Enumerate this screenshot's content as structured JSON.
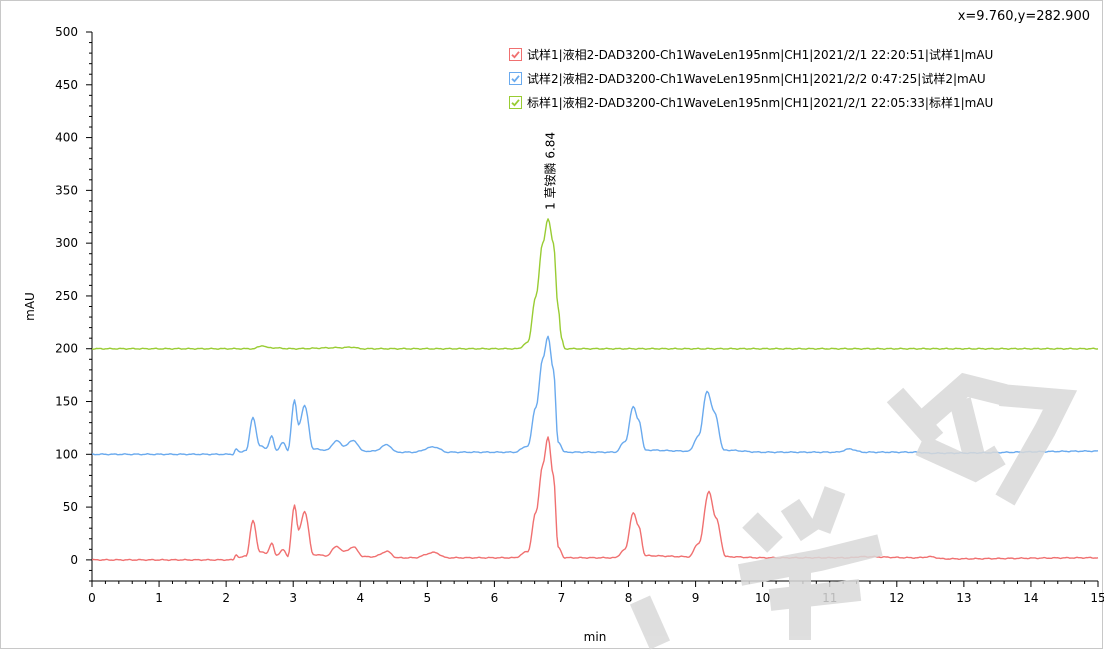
{
  "coord_readout": "x=9.760,y=282.900",
  "colors": {
    "red": "#f07070",
    "blue": "#6aaaee",
    "green": "#99cc33",
    "axis": "#000000"
  },
  "legend": [
    {
      "label": "试样1|液相2-DAD3200-Ch1WaveLen195nm|CH1|2021/2/1  22:20:51|试样1|mAU",
      "color": "#f07070",
      "checked": true
    },
    {
      "label": "试样2|液相2-DAD3200-Ch1WaveLen195nm|CH1|2021/2/2  0:47:25|试样2|mAU",
      "color": "#6aaaee",
      "checked": true
    },
    {
      "label": "标样1|液相2-DAD3200-Ch1WaveLen195nm|CH1|2021/2/1  22:05:33|标样1|mAU",
      "color": "#99cc33",
      "checked": true
    }
  ],
  "chart_data": {
    "type": "line",
    "xlabel": "min",
    "ylabel": "mAU",
    "xlim": [
      0,
      15
    ],
    "ylim": [
      -20,
      500
    ],
    "x_ticks": [
      0,
      1,
      2,
      3,
      4,
      5,
      6,
      7,
      8,
      9,
      10,
      11,
      12,
      13,
      14,
      15
    ],
    "y_ticks": [
      0,
      50,
      100,
      150,
      200,
      250,
      300,
      350,
      400,
      450,
      500
    ],
    "grid": false,
    "legend_position": "top-right",
    "annotations": [
      {
        "text": "1 草铵膦 6.84",
        "x": 6.84,
        "y": 322
      }
    ],
    "series": [
      {
        "name": "试样1",
        "color": "#f07070",
        "baseline": 0,
        "points": [
          [
            0,
            0
          ],
          [
            2.1,
            0
          ],
          [
            2.15,
            5
          ],
          [
            2.2,
            2
          ],
          [
            2.3,
            4
          ],
          [
            2.4,
            37
          ],
          [
            2.5,
            8
          ],
          [
            2.6,
            6
          ],
          [
            2.68,
            16
          ],
          [
            2.75,
            4
          ],
          [
            2.85,
            10
          ],
          [
            2.92,
            3
          ],
          [
            3.02,
            52
          ],
          [
            3.08,
            28
          ],
          [
            3.17,
            46
          ],
          [
            3.3,
            5
          ],
          [
            3.5,
            4
          ],
          [
            3.65,
            13
          ],
          [
            3.75,
            8
          ],
          [
            3.9,
            12
          ],
          [
            4.05,
            3
          ],
          [
            4.2,
            3
          ],
          [
            4.4,
            8
          ],
          [
            4.55,
            2
          ],
          [
            4.8,
            2
          ],
          [
            5.1,
            7
          ],
          [
            5.3,
            2
          ],
          [
            6.0,
            2
          ],
          [
            6.3,
            2
          ],
          [
            6.5,
            8
          ],
          [
            6.62,
            45
          ],
          [
            6.72,
            90
          ],
          [
            6.8,
            116
          ],
          [
            6.88,
            80
          ],
          [
            6.95,
            12
          ],
          [
            7.05,
            2
          ],
          [
            7.8,
            2
          ],
          [
            7.95,
            10
          ],
          [
            8.07,
            45
          ],
          [
            8.15,
            32
          ],
          [
            8.25,
            4
          ],
          [
            8.9,
            3
          ],
          [
            9.05,
            16
          ],
          [
            9.2,
            65
          ],
          [
            9.3,
            40
          ],
          [
            9.45,
            3
          ],
          [
            10.0,
            2
          ],
          [
            11.3,
            2
          ],
          [
            11.45,
            3
          ],
          [
            12.3,
            2
          ],
          [
            12.5,
            3
          ],
          [
            12.7,
            1
          ],
          [
            15,
            2
          ]
        ]
      },
      {
        "name": "试样2",
        "color": "#6aaaee",
        "baseline": 100,
        "points": [
          [
            0,
            100
          ],
          [
            2.1,
            100
          ],
          [
            2.15,
            105
          ],
          [
            2.2,
            102
          ],
          [
            2.3,
            104
          ],
          [
            2.4,
            135
          ],
          [
            2.5,
            108
          ],
          [
            2.6,
            106
          ],
          [
            2.68,
            117
          ],
          [
            2.75,
            104
          ],
          [
            2.85,
            111
          ],
          [
            2.92,
            104
          ],
          [
            3.02,
            151
          ],
          [
            3.08,
            128
          ],
          [
            3.17,
            146
          ],
          [
            3.3,
            105
          ],
          [
            3.5,
            104
          ],
          [
            3.65,
            113
          ],
          [
            3.75,
            108
          ],
          [
            3.9,
            113
          ],
          [
            4.05,
            103
          ],
          [
            4.2,
            103
          ],
          [
            4.4,
            109
          ],
          [
            4.55,
            102
          ],
          [
            4.8,
            102
          ],
          [
            5.1,
            107
          ],
          [
            5.3,
            102
          ],
          [
            6.0,
            102
          ],
          [
            6.3,
            102
          ],
          [
            6.5,
            108
          ],
          [
            6.62,
            145
          ],
          [
            6.72,
            190
          ],
          [
            6.8,
            212
          ],
          [
            6.88,
            180
          ],
          [
            6.95,
            112
          ],
          [
            7.05,
            102
          ],
          [
            7.8,
            102
          ],
          [
            7.95,
            112
          ],
          [
            8.07,
            145
          ],
          [
            8.15,
            133
          ],
          [
            8.25,
            104
          ],
          [
            8.9,
            103
          ],
          [
            9.05,
            118
          ],
          [
            9.17,
            160
          ],
          [
            9.28,
            140
          ],
          [
            9.42,
            104
          ],
          [
            10.0,
            102
          ],
          [
            11.1,
            102
          ],
          [
            11.3,
            105
          ],
          [
            11.5,
            102
          ],
          [
            12.3,
            102
          ],
          [
            12.5,
            101
          ],
          [
            15,
            103
          ]
        ]
      },
      {
        "name": "标样1",
        "color": "#99cc33",
        "baseline": 200,
        "points": [
          [
            0,
            200
          ],
          [
            2.4,
            200
          ],
          [
            2.55,
            203
          ],
          [
            2.62,
            201
          ],
          [
            3.0,
            200
          ],
          [
            3.7,
            201
          ],
          [
            3.9,
            201.5
          ],
          [
            4.0,
            200
          ],
          [
            6.35,
            200
          ],
          [
            6.5,
            206
          ],
          [
            6.62,
            250
          ],
          [
            6.72,
            300
          ],
          [
            6.8,
            323
          ],
          [
            6.88,
            300
          ],
          [
            6.95,
            240
          ],
          [
            7.0,
            210
          ],
          [
            7.05,
            200
          ],
          [
            15,
            200
          ]
        ]
      }
    ]
  }
}
